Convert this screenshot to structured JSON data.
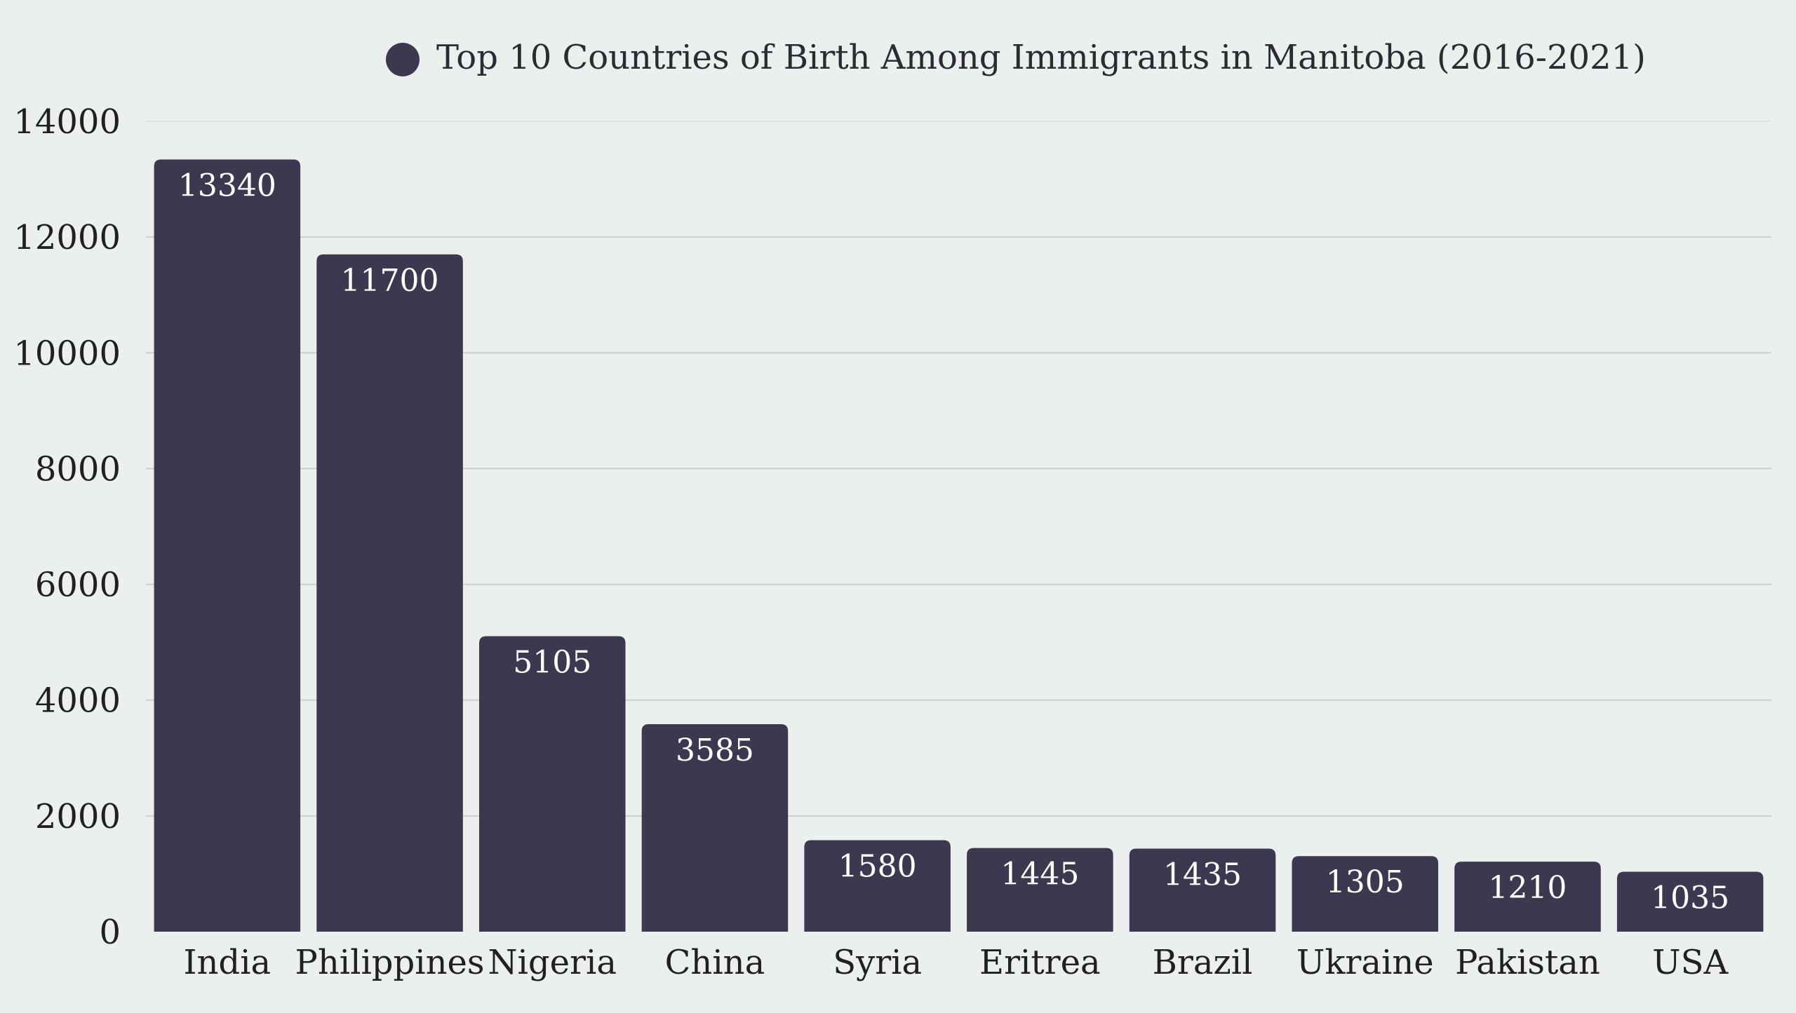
{
  "chart_data": {
    "type": "bar",
    "title": "",
    "xlabel": "",
    "ylabel": "",
    "legend": {
      "position": "top-center",
      "entries": [
        "Top 10 Countries of Birth Among Immigrants in Manitoba (2016-2021)"
      ]
    },
    "categories": [
      "India",
      "Philippines",
      "Nigeria",
      "China",
      "Syria",
      "Eritrea",
      "Brazil",
      "Ukraine",
      "Pakistan",
      "USA"
    ],
    "series": [
      {
        "name": "Top 10 Countries of Birth Among Immigrants in Manitoba (2016-2021)",
        "values": [
          13340,
          11700,
          5105,
          3585,
          1580,
          1445,
          1435,
          1305,
          1210,
          1035
        ],
        "color": "#3d384f"
      }
    ],
    "ylim": [
      0,
      14000
    ],
    "yticks": [
      0,
      2000,
      4000,
      6000,
      8000,
      10000,
      12000,
      14000
    ],
    "grid": true,
    "data_labels": true
  }
}
